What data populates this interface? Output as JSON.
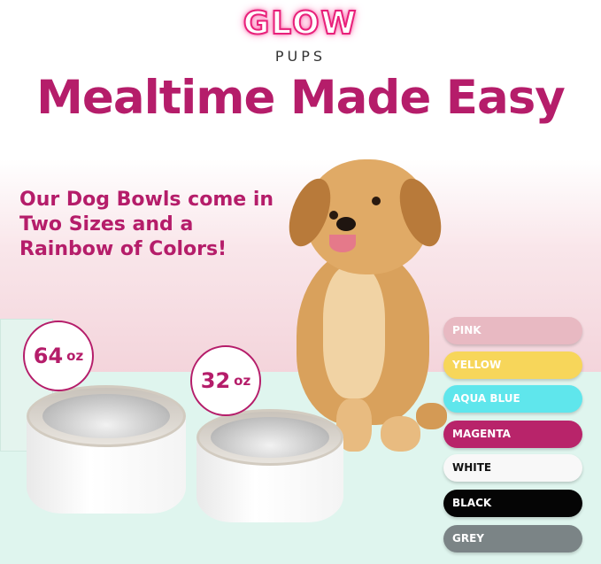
{
  "logo": {
    "line1": "GLOW",
    "line2": "PUPS"
  },
  "title": "Mealtime Made Easy",
  "subtitle": "Our Dog Bowls come in Two Sizes and a Rainbow of Colors!",
  "sizes": [
    {
      "value": "64",
      "unit": "oz"
    },
    {
      "value": "32",
      "unit": "oz"
    }
  ],
  "colors": [
    {
      "label": "PINK",
      "color": "#e8b9c2",
      "text": "#ffffff"
    },
    {
      "label": "YELLOW",
      "color": "#f7d65a",
      "text": "#ffffff"
    },
    {
      "label": "AQUA BLUE",
      "color": "#5fe6ec",
      "text": "#ffffff"
    },
    {
      "label": "MAGENTA",
      "color": "#b8246a",
      "text": "#ffffff"
    },
    {
      "label": "WHITE",
      "color": "#f8f8f8",
      "text": "#111111"
    },
    {
      "label": "BLACK",
      "color": "#050505",
      "text": "#ffffff"
    },
    {
      "label": "GREY",
      "color": "#7b8486",
      "text": "#ffffff"
    }
  ]
}
